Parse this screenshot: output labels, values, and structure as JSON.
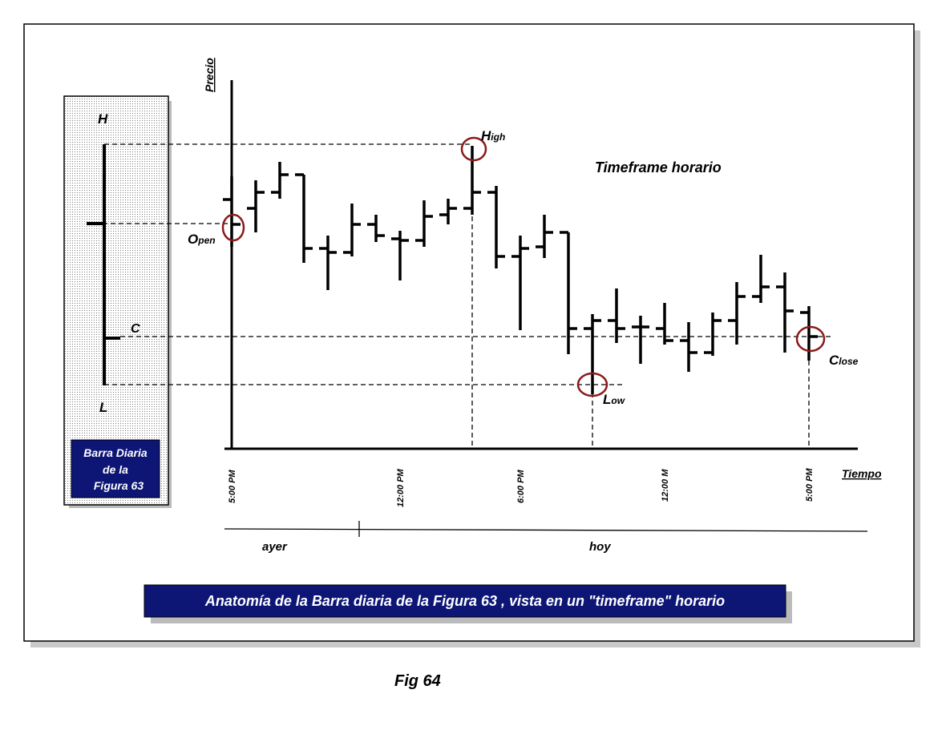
{
  "axis_labels": {
    "y": "Precio",
    "x": "Tiempo"
  },
  "daily_bar": {
    "high": "H",
    "low": "L",
    "close": "C",
    "caption": [
      "Barra Diaria",
      "de la",
      "Figura 63"
    ]
  },
  "annotations": {
    "high": [
      "H",
      "igh"
    ],
    "open": [
      "O",
      "pen"
    ],
    "low": [
      "L",
      "ow"
    ],
    "close": [
      "C",
      "lose"
    ],
    "timeframe": "Timeframe horario"
  },
  "time_labels": [
    "5:00 PM",
    "12:00 PM",
    "6:00 PM",
    "12:00 M",
    "5:00 PM"
  ],
  "periods": [
    "ayer",
    "hoy"
  ],
  "caption": "Anatomía de la Barra diaria de la Figura 63 , vista en un \"timeframe\" horario",
  "figure_label": "Fig 64"
}
